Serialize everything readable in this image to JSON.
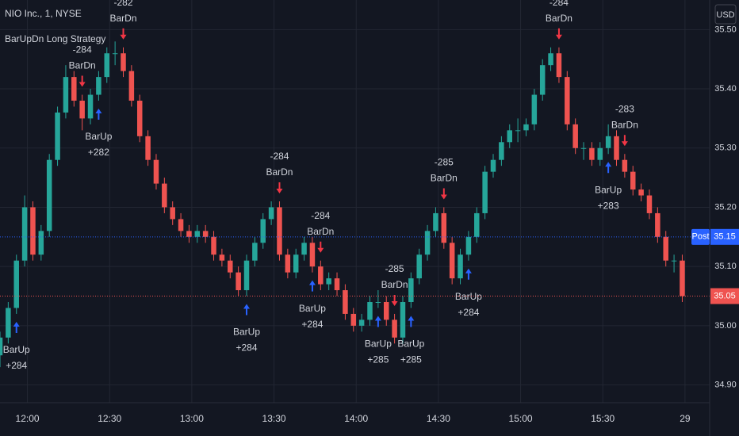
{
  "header": {
    "symbol": "NIO Inc., 1, NYSE",
    "strategy": "BarUpDn Long Strategy",
    "currency": "USD"
  },
  "chart_data": {
    "type": "candlestick",
    "x": [
      "11:50",
      "11:53",
      "11:56",
      "11:59",
      "12:02",
      "12:05",
      "12:08",
      "12:11",
      "12:14",
      "12:17",
      "12:20",
      "12:23",
      "12:26",
      "12:29",
      "12:32",
      "12:35",
      "12:38",
      "12:41",
      "12:44",
      "12:47",
      "12:50",
      "12:53",
      "12:56",
      "12:59",
      "13:02",
      "13:05",
      "13:08",
      "13:11",
      "13:14",
      "13:17",
      "13:20",
      "13:23",
      "13:26",
      "13:29",
      "13:32",
      "13:35",
      "13:38",
      "13:41",
      "13:44",
      "13:47",
      "13:50",
      "13:53",
      "13:56",
      "13:59",
      "14:02",
      "14:05",
      "14:08",
      "14:11",
      "14:14",
      "14:17",
      "14:20",
      "14:23",
      "14:26",
      "14:29",
      "14:32",
      "14:35",
      "14:38",
      "14:41",
      "14:44",
      "14:47",
      "14:50",
      "14:53",
      "14:56",
      "14:59",
      "15:02",
      "15:05",
      "15:08",
      "15:11",
      "15:14",
      "15:17",
      "15:20",
      "15:23",
      "15:26",
      "15:29",
      "15:32",
      "15:35",
      "15:38",
      "15:41",
      "15:44",
      "15:47",
      "15:50",
      "15:53",
      "15:56",
      "15:59"
    ],
    "open": [
      34.95,
      34.98,
      35.03,
      35.11,
      35.2,
      35.12,
      35.16,
      35.28,
      35.36,
      35.42,
      35.38,
      35.35,
      35.39,
      35.42,
      35.46,
      35.46,
      35.43,
      35.38,
      35.32,
      35.28,
      35.24,
      35.2,
      35.18,
      35.16,
      35.15,
      35.16,
      35.15,
      35.12,
      35.11,
      35.09,
      35.06,
      35.11,
      35.14,
      35.18,
      35.2,
      35.12,
      35.09,
      35.12,
      35.14,
      35.1,
      35.07,
      35.08,
      35.06,
      35.02,
      35.0,
      35.01,
      35.04,
      35.04,
      35.01,
      34.98,
      35.04,
      35.08,
      35.12,
      35.16,
      35.19,
      35.14,
      35.08,
      35.12,
      35.15,
      35.19,
      35.26,
      35.28,
      35.31,
      35.33,
      35.33,
      35.34,
      35.39,
      35.44,
      35.46,
      35.42,
      35.34,
      35.3,
      35.3,
      35.28,
      35.3,
      35.32,
      35.28,
      35.26,
      35.23,
      35.22,
      35.19,
      35.15,
      35.11,
      35.11
    ],
    "high": [
      34.99,
      35.04,
      35.12,
      35.22,
      35.21,
      35.17,
      35.29,
      35.37,
      35.44,
      35.43,
      35.39,
      35.4,
      35.43,
      35.47,
      35.48,
      35.47,
      35.44,
      35.39,
      35.33,
      35.29,
      35.25,
      35.21,
      35.19,
      35.17,
      35.17,
      35.17,
      35.16,
      35.13,
      35.12,
      35.1,
      35.12,
      35.15,
      35.19,
      35.21,
      35.21,
      35.13,
      35.13,
      35.15,
      35.15,
      35.11,
      35.09,
      35.09,
      35.07,
      35.03,
      35.02,
      35.05,
      35.06,
      35.05,
      35.02,
      35.05,
      35.09,
      35.13,
      35.17,
      35.2,
      35.2,
      35.15,
      35.13,
      35.16,
      35.2,
      35.27,
      35.29,
      35.32,
      35.34,
      35.35,
      35.35,
      35.4,
      35.45,
      35.47,
      35.47,
      35.43,
      35.35,
      35.31,
      35.31,
      35.31,
      35.34,
      35.33,
      35.29,
      35.27,
      35.24,
      35.23,
      35.2,
      35.16,
      35.12,
      35.12
    ],
    "low": [
      34.93,
      34.97,
      35.02,
      35.1,
      35.11,
      35.11,
      35.15,
      35.27,
      35.35,
      35.37,
      35.33,
      35.34,
      35.38,
      35.41,
      35.44,
      35.42,
      35.37,
      35.31,
      35.27,
      35.23,
      35.19,
      35.17,
      35.15,
      35.14,
      35.14,
      35.14,
      35.11,
      35.1,
      35.08,
      35.05,
      35.05,
      35.1,
      35.13,
      35.17,
      35.11,
      35.08,
      35.08,
      35.11,
      35.09,
      35.06,
      35.06,
      35.05,
      35.01,
      34.99,
      34.99,
      35.0,
      35.03,
      35.0,
      34.97,
      34.97,
      35.03,
      35.07,
      35.11,
      35.15,
      35.13,
      35.07,
      35.07,
      35.11,
      35.14,
      35.18,
      35.25,
      35.27,
      35.3,
      35.31,
      35.32,
      35.33,
      35.38,
      35.43,
      35.41,
      35.33,
      35.29,
      35.28,
      35.27,
      35.27,
      35.29,
      35.27,
      35.25,
      35.22,
      35.21,
      35.18,
      35.14,
      35.1,
      35.09,
      35.04
    ],
    "close": [
      34.98,
      35.03,
      35.11,
      35.2,
      35.12,
      35.16,
      35.28,
      35.36,
      35.42,
      35.38,
      35.35,
      35.39,
      35.42,
      35.46,
      35.46,
      35.43,
      35.38,
      35.32,
      35.28,
      35.24,
      35.2,
      35.18,
      35.16,
      35.15,
      35.16,
      35.15,
      35.12,
      35.11,
      35.09,
      35.06,
      35.11,
      35.14,
      35.18,
      35.2,
      35.12,
      35.09,
      35.12,
      35.14,
      35.1,
      35.07,
      35.08,
      35.06,
      35.02,
      35.0,
      35.01,
      35.04,
      35.04,
      35.01,
      34.98,
      35.04,
      35.08,
      35.12,
      35.16,
      35.19,
      35.14,
      35.08,
      35.12,
      35.15,
      35.19,
      35.26,
      35.28,
      35.31,
      35.33,
      35.33,
      35.34,
      35.39,
      35.44,
      35.46,
      35.42,
      35.34,
      35.3,
      35.3,
      35.28,
      35.3,
      35.32,
      35.28,
      35.26,
      35.23,
      35.22,
      35.19,
      35.15,
      35.11,
      35.11,
      35.05
    ],
    "up_color": "#26a69a",
    "down_color": "#ef5350",
    "ylim": [
      34.87,
      35.55
    ],
    "yticks": [
      {
        "value": 34.9,
        "label": "34.90"
      },
      {
        "value": 35,
        "label": "35.00"
      },
      {
        "value": 35.1,
        "label": "35.10"
      },
      {
        "value": 35.2,
        "label": "35.20"
      },
      {
        "value": 35.3,
        "label": "35.30"
      },
      {
        "value": 35.4,
        "label": "35.40"
      },
      {
        "value": 35.5,
        "label": "35.50"
      }
    ],
    "xlim": [
      "11:50",
      "16:09"
    ],
    "xticks": [
      "12:00",
      "12:30",
      "13:00",
      "13:30",
      "14:00",
      "14:30",
      "15:00",
      "15:30",
      {
        "value": "16:00",
        "label": "29"
      }
    ],
    "grid": true,
    "post": {
      "label": "Post",
      "price": 35.15,
      "color": "#2962ff"
    },
    "last_price": 35.05,
    "entries": {
      "color": "#2962ff",
      "signals": [
        {
          "x": "11:56",
          "name": "BarUp",
          "qty": "+284"
        },
        {
          "x": "12:26",
          "name": "BarUp",
          "qty": "+282"
        },
        {
          "x": "13:20",
          "name": "BarUp",
          "qty": "+284"
        },
        {
          "x": "13:44",
          "name": "BarUp",
          "qty": "+284"
        },
        {
          "x": "14:08",
          "name": "BarUp",
          "qty": "+285"
        },
        {
          "x": "14:20",
          "name": "BarUp",
          "qty": "+285"
        },
        {
          "x": "14:41",
          "name": "BarUp",
          "qty": "+284"
        },
        {
          "x": "15:32",
          "name": "BarUp",
          "qty": "+283"
        }
      ]
    },
    "exits": {
      "color": "#f23645",
      "signals": [
        {
          "x": "12:20",
          "name": "BarDn",
          "qty": "-284"
        },
        {
          "x": "12:35",
          "name": "BarDn",
          "qty": "-282"
        },
        {
          "x": "13:32",
          "name": "BarDn",
          "qty": "-284"
        },
        {
          "x": "13:47",
          "name": "BarDn",
          "qty": "-284"
        },
        {
          "x": "14:14",
          "name": "BarDn",
          "qty": "-285"
        },
        {
          "x": "14:32",
          "name": "BarDn",
          "qty": "-285"
        },
        {
          "x": "15:14",
          "name": "BarDn",
          "qty": "-284"
        },
        {
          "x": "15:38",
          "name": "BarDn",
          "qty": "-283"
        }
      ]
    }
  }
}
